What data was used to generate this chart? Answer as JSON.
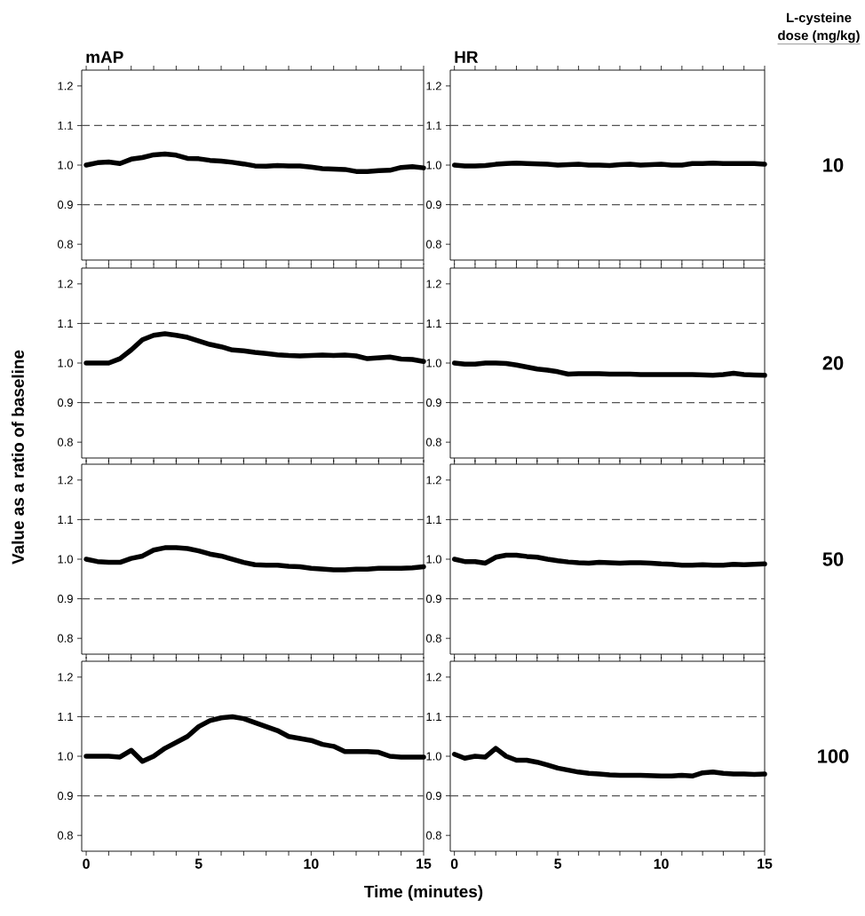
{
  "chart_data": [
    {
      "type": "line",
      "title": "mAP",
      "ylabel": "Value as a ratio of baseline",
      "tick_labels": "y",
      "x": [
        0,
        0.5,
        1,
        1.5,
        2,
        2.5,
        3,
        3.5,
        4,
        4.5,
        5,
        5.5,
        6,
        6.5,
        7,
        7.5,
        8,
        8.5,
        9,
        9.5,
        10,
        10.5,
        11,
        11.5,
        12,
        12.5,
        13,
        13.5,
        14,
        14.5,
        15
      ],
      "series": [
        {
          "color": "#000000",
          "values": [
            1.0,
            1.006,
            1.008,
            1.004,
            1.015,
            1.019,
            1.026,
            1.028,
            1.025,
            1.017,
            1.016,
            1.012,
            1.01,
            1.007,
            1.003,
            0.998,
            0.997,
            0.999,
            0.998,
            0.998,
            0.995,
            0.991,
            0.99,
            0.989,
            0.984,
            0.984,
            0.986,
            0.987,
            0.994,
            0.996,
            0.993
          ]
        }
      ],
      "xlim": [
        -0.2,
        15
      ],
      "ylim": [
        0.76,
        1.24
      ],
      "xticks": [
        {
          "value": 0,
          "label": null
        },
        {
          "value": 1,
          "label": null
        },
        {
          "value": 2,
          "label": null
        },
        {
          "value": 3,
          "label": null
        },
        {
          "value": 4,
          "label": null
        },
        {
          "value": 5,
          "label": null
        },
        {
          "value": 6,
          "label": null
        },
        {
          "value": 7,
          "label": null
        },
        {
          "value": 8,
          "label": null
        },
        {
          "value": 9,
          "label": null
        },
        {
          "value": 10,
          "label": null
        },
        {
          "value": 11,
          "label": null
        },
        {
          "value": 12,
          "label": null
        },
        {
          "value": 13,
          "label": null
        },
        {
          "value": 14,
          "label": null
        },
        {
          "value": 15,
          "label": null
        }
      ],
      "yticks": [
        {
          "value": 0.8,
          "label": "0.8"
        },
        {
          "value": 0.9,
          "label": "0.9"
        },
        {
          "value": 1.0,
          "label": "1.0"
        },
        {
          "value": 1.1,
          "label": "1.1"
        },
        {
          "value": 1.2,
          "label": "1.2"
        }
      ],
      "ref_lines": [
        {
          "axis": "y",
          "value": 0.9,
          "color": "#555555",
          "line_style": "dashed"
        },
        {
          "axis": "y",
          "value": 1.1,
          "color": "#555555",
          "line_style": "dashed"
        }
      ]
    },
    {
      "type": "line",
      "title": "HR",
      "tick_labels": "y",
      "annotations": [
        "L-cysteine",
        "dose (mg/kg)",
        "10"
      ],
      "x": [
        0,
        0.5,
        1,
        1.5,
        2,
        2.5,
        3,
        3.5,
        4,
        4.5,
        5,
        5.5,
        6,
        6.5,
        7,
        7.5,
        8,
        8.5,
        9,
        9.5,
        10,
        10.5,
        11,
        11.5,
        12,
        12.5,
        13,
        13.5,
        14,
        14.5,
        15
      ],
      "series": [
        {
          "color": "#000000",
          "values": [
            1.0,
            0.998,
            0.998,
            0.999,
            1.002,
            1.004,
            1.005,
            1.004,
            1.003,
            1.002,
            1.0,
            1.001,
            1.002,
            1.0,
            1.0,
            0.999,
            1.001,
            1.002,
            1.0,
            1.001,
            1.002,
            1.0,
            1.0,
            1.004,
            1.004,
            1.005,
            1.004,
            1.004,
            1.004,
            1.004,
            1.002
          ]
        }
      ],
      "xlim": [
        -0.2,
        15
      ],
      "ylim": [
        0.76,
        1.24
      ],
      "xticks": [
        {
          "value": 0,
          "label": null
        },
        {
          "value": 1,
          "label": null
        },
        {
          "value": 2,
          "label": null
        },
        {
          "value": 3,
          "label": null
        },
        {
          "value": 4,
          "label": null
        },
        {
          "value": 5,
          "label": null
        },
        {
          "value": 6,
          "label": null
        },
        {
          "value": 7,
          "label": null
        },
        {
          "value": 8,
          "label": null
        },
        {
          "value": 9,
          "label": null
        },
        {
          "value": 10,
          "label": null
        },
        {
          "value": 11,
          "label": null
        },
        {
          "value": 12,
          "label": null
        },
        {
          "value": 13,
          "label": null
        },
        {
          "value": 14,
          "label": null
        },
        {
          "value": 15,
          "label": null
        }
      ],
      "yticks": [
        {
          "value": 0.8,
          "label": "0.8"
        },
        {
          "value": 0.9,
          "label": "0.9"
        },
        {
          "value": 1.0,
          "label": "1.0"
        },
        {
          "value": 1.1,
          "label": "1.1"
        },
        {
          "value": 1.2,
          "label": "1.2"
        }
      ],
      "ref_lines": [
        {
          "axis": "y",
          "value": 0.9,
          "color": "#555555",
          "line_style": "dashed"
        },
        {
          "axis": "y",
          "value": 1.1,
          "color": "#555555",
          "line_style": "dashed"
        }
      ]
    },
    {
      "type": "line",
      "tick_labels": "y",
      "x": [
        0,
        0.5,
        1,
        1.5,
        2,
        2.5,
        3,
        3.5,
        4,
        4.5,
        5,
        5.5,
        6,
        6.5,
        7,
        7.5,
        8,
        8.5,
        9,
        9.5,
        10,
        10.5,
        11,
        11.5,
        12,
        12.5,
        13,
        13.5,
        14,
        14.5,
        15
      ],
      "series": [
        {
          "color": "#000000",
          "values": [
            1.0,
            1.0,
            1.0,
            1.011,
            1.033,
            1.059,
            1.07,
            1.074,
            1.07,
            1.065,
            1.056,
            1.047,
            1.041,
            1.033,
            1.031,
            1.027,
            1.024,
            1.021,
            1.019,
            1.018,
            1.019,
            1.02,
            1.019,
            1.02,
            1.018,
            1.011,
            1.013,
            1.015,
            1.01,
            1.009,
            1.004
          ]
        }
      ],
      "xlim": [
        -0.2,
        15
      ],
      "ylim": [
        0.76,
        1.24
      ],
      "xticks": [
        {
          "value": 0,
          "label": null
        },
        {
          "value": 1,
          "label": null
        },
        {
          "value": 2,
          "label": null
        },
        {
          "value": 3,
          "label": null
        },
        {
          "value": 4,
          "label": null
        },
        {
          "value": 5,
          "label": null
        },
        {
          "value": 6,
          "label": null
        },
        {
          "value": 7,
          "label": null
        },
        {
          "value": 8,
          "label": null
        },
        {
          "value": 9,
          "label": null
        },
        {
          "value": 10,
          "label": null
        },
        {
          "value": 11,
          "label": null
        },
        {
          "value": 12,
          "label": null
        },
        {
          "value": 13,
          "label": null
        },
        {
          "value": 14,
          "label": null
        },
        {
          "value": 15,
          "label": null
        }
      ],
      "yticks": [
        {
          "value": 0.8,
          "label": "0.8"
        },
        {
          "value": 0.9,
          "label": "0.9"
        },
        {
          "value": 1.0,
          "label": "1.0"
        },
        {
          "value": 1.1,
          "label": "1.1"
        },
        {
          "value": 1.2,
          "label": "1.2"
        }
      ],
      "ref_lines": [
        {
          "axis": "y",
          "value": 0.9,
          "color": "#555555",
          "line_style": "dashed"
        },
        {
          "axis": "y",
          "value": 1.1,
          "color": "#555555",
          "line_style": "dashed"
        }
      ]
    },
    {
      "type": "line",
      "tick_labels": "y",
      "annotations": [
        "20"
      ],
      "x": [
        0,
        0.5,
        1,
        1.5,
        2,
        2.5,
        3,
        3.5,
        4,
        4.5,
        5,
        5.5,
        6,
        6.5,
        7,
        7.5,
        8,
        8.5,
        9,
        9.5,
        10,
        10.5,
        11,
        11.5,
        12,
        12.5,
        13,
        13.5,
        14,
        14.5,
        15
      ],
      "series": [
        {
          "color": "#000000",
          "values": [
            1.0,
            0.997,
            0.997,
            1.0,
            1.0,
            0.999,
            0.995,
            0.99,
            0.985,
            0.982,
            0.978,
            0.972,
            0.973,
            0.973,
            0.973,
            0.972,
            0.972,
            0.972,
            0.971,
            0.971,
            0.971,
            0.971,
            0.971,
            0.971,
            0.97,
            0.969,
            0.971,
            0.974,
            0.971,
            0.97,
            0.969
          ]
        }
      ],
      "xlim": [
        -0.2,
        15
      ],
      "ylim": [
        0.76,
        1.24
      ],
      "xticks": [
        {
          "value": 0,
          "label": null
        },
        {
          "value": 1,
          "label": null
        },
        {
          "value": 2,
          "label": null
        },
        {
          "value": 3,
          "label": null
        },
        {
          "value": 4,
          "label": null
        },
        {
          "value": 5,
          "label": null
        },
        {
          "value": 6,
          "label": null
        },
        {
          "value": 7,
          "label": null
        },
        {
          "value": 8,
          "label": null
        },
        {
          "value": 9,
          "label": null
        },
        {
          "value": 10,
          "label": null
        },
        {
          "value": 11,
          "label": null
        },
        {
          "value": 12,
          "label": null
        },
        {
          "value": 13,
          "label": null
        },
        {
          "value": 14,
          "label": null
        },
        {
          "value": 15,
          "label": null
        }
      ],
      "yticks": [
        {
          "value": 0.8,
          "label": "0.8"
        },
        {
          "value": 0.9,
          "label": "0.9"
        },
        {
          "value": 1.0,
          "label": "1.0"
        },
        {
          "value": 1.1,
          "label": "1.1"
        },
        {
          "value": 1.2,
          "label": "1.2"
        }
      ],
      "ref_lines": [
        {
          "axis": "y",
          "value": 0.9,
          "color": "#555555",
          "line_style": "dashed"
        },
        {
          "axis": "y",
          "value": 1.1,
          "color": "#555555",
          "line_style": "dashed"
        }
      ]
    },
    {
      "type": "line",
      "tick_labels": "y",
      "x": [
        0,
        0.5,
        1,
        1.5,
        2,
        2.5,
        3,
        3.5,
        4,
        4.5,
        5,
        5.5,
        6,
        6.5,
        7,
        7.5,
        8,
        8.5,
        9,
        9.5,
        10,
        10.5,
        11,
        11.5,
        12,
        12.5,
        13,
        13.5,
        14,
        14.5,
        15
      ],
      "series": [
        {
          "color": "#000000",
          "values": [
            1.0,
            0.994,
            0.992,
            0.992,
            1.002,
            1.008,
            1.023,
            1.029,
            1.029,
            1.027,
            1.021,
            1.013,
            1.008,
            1.0,
            0.992,
            0.986,
            0.985,
            0.985,
            0.982,
            0.981,
            0.977,
            0.975,
            0.973,
            0.973,
            0.975,
            0.975,
            0.977,
            0.977,
            0.977,
            0.978,
            0.981
          ]
        }
      ],
      "xlim": [
        -0.2,
        15
      ],
      "ylim": [
        0.76,
        1.24
      ],
      "xticks": [
        {
          "value": 0,
          "label": null
        },
        {
          "value": 1,
          "label": null
        },
        {
          "value": 2,
          "label": null
        },
        {
          "value": 3,
          "label": null
        },
        {
          "value": 4,
          "label": null
        },
        {
          "value": 5,
          "label": null
        },
        {
          "value": 6,
          "label": null
        },
        {
          "value": 7,
          "label": null
        },
        {
          "value": 8,
          "label": null
        },
        {
          "value": 9,
          "label": null
        },
        {
          "value": 10,
          "label": null
        },
        {
          "value": 11,
          "label": null
        },
        {
          "value": 12,
          "label": null
        },
        {
          "value": 13,
          "label": null
        },
        {
          "value": 14,
          "label": null
        },
        {
          "value": 15,
          "label": null
        }
      ],
      "yticks": [
        {
          "value": 0.8,
          "label": "0.8"
        },
        {
          "value": 0.9,
          "label": "0.9"
        },
        {
          "value": 1.0,
          "label": "1.0"
        },
        {
          "value": 1.1,
          "label": "1.1"
        },
        {
          "value": 1.2,
          "label": "1.2"
        }
      ],
      "ref_lines": [
        {
          "axis": "y",
          "value": 0.9,
          "color": "#555555",
          "line_style": "dashed"
        },
        {
          "axis": "y",
          "value": 1.1,
          "color": "#555555",
          "line_style": "dashed"
        }
      ]
    },
    {
      "type": "line",
      "tick_labels": "y",
      "annotations": [
        "50"
      ],
      "x": [
        0,
        0.5,
        1,
        1.5,
        2,
        2.5,
        3,
        3.5,
        4,
        4.5,
        5,
        5.5,
        6,
        6.5,
        7,
        7.5,
        8,
        8.5,
        9,
        9.5,
        10,
        10.5,
        11,
        11.5,
        12,
        12.5,
        13,
        13.5,
        14,
        14.5,
        15
      ],
      "series": [
        {
          "color": "#000000",
          "values": [
            1.0,
            0.994,
            0.994,
            0.99,
            1.005,
            1.01,
            1.01,
            1.007,
            1.005,
            1.0,
            0.996,
            0.993,
            0.991,
            0.99,
            0.992,
            0.991,
            0.99,
            0.991,
            0.991,
            0.99,
            0.988,
            0.987,
            0.985,
            0.985,
            0.986,
            0.985,
            0.985,
            0.987,
            0.986,
            0.987,
            0.988
          ]
        }
      ],
      "xlim": [
        -0.2,
        15
      ],
      "ylim": [
        0.76,
        1.24
      ],
      "xticks": [
        {
          "value": 0,
          "label": null
        },
        {
          "value": 1,
          "label": null
        },
        {
          "value": 2,
          "label": null
        },
        {
          "value": 3,
          "label": null
        },
        {
          "value": 4,
          "label": null
        },
        {
          "value": 5,
          "label": null
        },
        {
          "value": 6,
          "label": null
        },
        {
          "value": 7,
          "label": null
        },
        {
          "value": 8,
          "label": null
        },
        {
          "value": 9,
          "label": null
        },
        {
          "value": 10,
          "label": null
        },
        {
          "value": 11,
          "label": null
        },
        {
          "value": 12,
          "label": null
        },
        {
          "value": 13,
          "label": null
        },
        {
          "value": 14,
          "label": null
        },
        {
          "value": 15,
          "label": null
        }
      ],
      "yticks": [
        {
          "value": 0.8,
          "label": "0.8"
        },
        {
          "value": 0.9,
          "label": "0.9"
        },
        {
          "value": 1.0,
          "label": "1.0"
        },
        {
          "value": 1.1,
          "label": "1.1"
        },
        {
          "value": 1.2,
          "label": "1.2"
        }
      ],
      "ref_lines": [
        {
          "axis": "y",
          "value": 0.9,
          "color": "#555555",
          "line_style": "dashed"
        },
        {
          "axis": "y",
          "value": 1.1,
          "color": "#555555",
          "line_style": "dashed"
        }
      ]
    },
    {
      "type": "line",
      "xlabel": "Time (minutes)",
      "x": [
        0,
        0.5,
        1,
        1.5,
        2,
        2.5,
        3,
        3.5,
        4,
        4.5,
        5,
        5.5,
        6,
        6.5,
        7,
        7.5,
        8,
        8.5,
        9,
        9.5,
        10,
        10.5,
        11,
        11.5,
        12,
        12.5,
        13,
        13.5,
        14,
        14.5,
        15
      ],
      "series": [
        {
          "color": "#000000",
          "values": [
            1.0,
            1.0,
            1.0,
            0.998,
            1.015,
            0.987,
            1.0,
            1.02,
            1.035,
            1.05,
            1.075,
            1.09,
            1.097,
            1.1,
            1.095,
            1.085,
            1.075,
            1.065,
            1.05,
            1.045,
            1.04,
            1.03,
            1.025,
            1.012,
            1.012,
            1.012,
            1.01,
            1.0,
            0.998,
            0.998,
            0.998
          ]
        }
      ],
      "xlim": [
        -0.2,
        15
      ],
      "ylim": [
        0.76,
        1.24
      ],
      "xticks": [
        {
          "value": 0,
          "label": "0"
        },
        {
          "value": 1,
          "label": null
        },
        {
          "value": 2,
          "label": null
        },
        {
          "value": 3,
          "label": null
        },
        {
          "value": 4,
          "label": null
        },
        {
          "value": 5,
          "label": "5"
        },
        {
          "value": 6,
          "label": null
        },
        {
          "value": 7,
          "label": null
        },
        {
          "value": 8,
          "label": null
        },
        {
          "value": 9,
          "label": null
        },
        {
          "value": 10,
          "label": "10"
        },
        {
          "value": 11,
          "label": null
        },
        {
          "value": 12,
          "label": null
        },
        {
          "value": 13,
          "label": null
        },
        {
          "value": 14,
          "label": null
        },
        {
          "value": 15,
          "label": "15"
        }
      ],
      "yticks": [
        {
          "value": 0.8,
          "label": "0.8"
        },
        {
          "value": 0.9,
          "label": "0.9"
        },
        {
          "value": 1.0,
          "label": "1.0"
        },
        {
          "value": 1.1,
          "label": "1.1"
        },
        {
          "value": 1.2,
          "label": "1.2"
        }
      ],
      "ref_lines": [
        {
          "axis": "y",
          "value": 0.9,
          "color": "#555555",
          "line_style": "dashed"
        },
        {
          "axis": "y",
          "value": 1.1,
          "color": "#555555",
          "line_style": "dashed"
        }
      ]
    },
    {
      "type": "line",
      "annotations": [
        "100"
      ],
      "x": [
        0,
        0.5,
        1,
        1.5,
        2,
        2.5,
        3,
        3.5,
        4,
        4.5,
        5,
        5.5,
        6,
        6.5,
        7,
        7.5,
        8,
        8.5,
        9,
        9.5,
        10,
        10.5,
        11,
        11.5,
        12,
        12.5,
        13,
        13.5,
        14,
        14.5,
        15
      ],
      "series": [
        {
          "color": "#000000",
          "values": [
            1.005,
            0.995,
            1.0,
            0.998,
            1.02,
            1.0,
            0.99,
            0.99,
            0.985,
            0.978,
            0.97,
            0.965,
            0.96,
            0.957,
            0.955,
            0.953,
            0.952,
            0.952,
            0.952,
            0.951,
            0.95,
            0.95,
            0.952,
            0.95,
            0.958,
            0.96,
            0.957,
            0.955,
            0.955,
            0.954,
            0.955
          ]
        }
      ],
      "xlim": [
        -0.2,
        15
      ],
      "ylim": [
        0.76,
        1.24
      ],
      "xticks": [
        {
          "value": 0,
          "label": "0"
        },
        {
          "value": 1,
          "label": null
        },
        {
          "value": 2,
          "label": null
        },
        {
          "value": 3,
          "label": null
        },
        {
          "value": 4,
          "label": null
        },
        {
          "value": 5,
          "label": "5"
        },
        {
          "value": 6,
          "label": null
        },
        {
          "value": 7,
          "label": null
        },
        {
          "value": 8,
          "label": null
        },
        {
          "value": 9,
          "label": null
        },
        {
          "value": 10,
          "label": "10"
        },
        {
          "value": 11,
          "label": null
        },
        {
          "value": 12,
          "label": null
        },
        {
          "value": 13,
          "label": null
        },
        {
          "value": 14,
          "label": null
        },
        {
          "value": 15,
          "label": "15"
        }
      ],
      "yticks": [
        {
          "value": 0.8,
          "label": "0.8"
        },
        {
          "value": 0.9,
          "label": "0.9"
        },
        {
          "value": 1.0,
          "label": "1.0"
        },
        {
          "value": 1.1,
          "label": "1.1"
        },
        {
          "value": 1.2,
          "label": "1.2"
        }
      ],
      "ref_lines": [
        {
          "axis": "y",
          "value": 0.9,
          "color": "#555555",
          "line_style": "dashed"
        },
        {
          "axis": "y",
          "value": 1.1,
          "color": "#555555",
          "line_style": "dashed"
        }
      ]
    }
  ]
}
